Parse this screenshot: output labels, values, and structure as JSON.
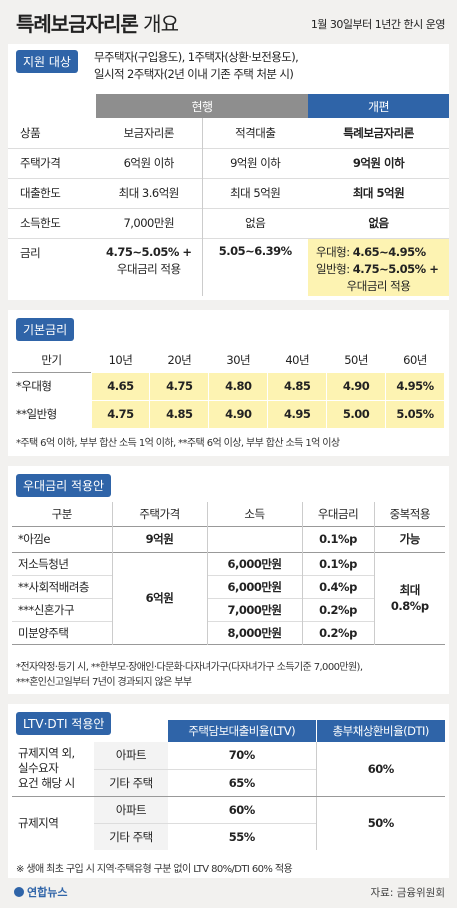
{
  "header": {
    "title": "특례보금자리론",
    "title_sub": " 개요",
    "date": "1월 30일부터 1년간 한시 운영"
  },
  "target": {
    "tag": "지원 대상",
    "line1": "무주택자(구입용도), 1주택자(상환·보전용도),",
    "line2": "일시적 2주택자(2년 이내 기존 주택 처분 시)"
  },
  "compare": {
    "group_current": "현행",
    "group_new": "개편",
    "rows": [
      {
        "label": "상품",
        "a": "보금자리론",
        "b": "적격대출",
        "c": "특례보금자리론"
      },
      {
        "label": "주택가격",
        "a": "6억원 이하",
        "b": "9억원 이하",
        "c": "9억원 이하"
      },
      {
        "label": "대출한도",
        "a": "최대 3.6억원",
        "b": "최대 5억원",
        "c": "최대 5억원"
      },
      {
        "label": "소득한도",
        "a": "7,000만원",
        "b": "없음",
        "c": "없음"
      }
    ],
    "rate": {
      "label": "금리",
      "a1": "4.75~5.05% +",
      "a2": "우대금리 적용",
      "b": "5.05~6.39%",
      "c1_prefix": "우대형: ",
      "c1_value": "4.65~4.95%",
      "c2_prefix": "일반형: ",
      "c2_value": "4.75~5.05% +",
      "c3": "우대금리 적용"
    }
  },
  "base": {
    "tag": "기본금리",
    "head": [
      "만기",
      "10년",
      "20년",
      "30년",
      "40년",
      "50년",
      "60년"
    ],
    "rows": [
      {
        "label": "*우대형",
        "values": [
          "4.65",
          "4.75",
          "4.80",
          "4.85",
          "4.90",
          "4.95%"
        ]
      },
      {
        "label": "**일반형",
        "values": [
          "4.75",
          "4.85",
          "4.90",
          "4.95",
          "5.00",
          "5.05%"
        ]
      }
    ],
    "note": "*주택 6억 이하, 부부 합산 소득 1억 이하, **주택 6억 이상, 부부 합산 소득 1억 이상"
  },
  "pref": {
    "tag": "우대금리 적용안",
    "head": [
      "구분",
      "주택가격",
      "소득",
      "우대금리",
      "중복적용"
    ],
    "rows": [
      {
        "label": "*아낌e",
        "price": "9억원",
        "income": "",
        "rate": "0.1%p",
        "dup": "가능"
      },
      {
        "label": "저소득청년",
        "income": "6,000만원",
        "rate": "0.1%p"
      },
      {
        "label": "**사회적배려층",
        "income": "6,000만원",
        "rate": "0.4%p"
      },
      {
        "label": "***신혼가구",
        "income": "7,000만원",
        "rate": "0.2%p"
      },
      {
        "label": "미분양주택",
        "income": "8,000만원",
        "rate": "0.2%p"
      }
    ],
    "merged_price": "6억원",
    "merged_dup1": "최대",
    "merged_dup2": "0.8%p",
    "note1": "*전자약정·등기 시, **한부모·장애인·다문화·다자녀가구(다자녀가구 소득기준 7,000만원),",
    "note2": "***혼인신고일부터 7년이 경과되지 않은 부부"
  },
  "ltv": {
    "tag": "LTV·DTI 적용안",
    "head_ltv": "주택담보대출비율(LTV)",
    "head_dti": "총부채상환비율(DTI)",
    "group1": {
      "l1": "규제지역 외,",
      "l2": "실수요자",
      "l3": "요건 해당 시",
      "rows": [
        {
          "type": "아파트",
          "ltv": "70%"
        },
        {
          "type": "기타 주택",
          "ltv": "65%"
        }
      ],
      "dti": "60%"
    },
    "group2": {
      "label": "규제지역",
      "rows": [
        {
          "type": "아파트",
          "ltv": "60%"
        },
        {
          "type": "기타 주택",
          "ltv": "55%"
        }
      ],
      "dti": "50%"
    },
    "note": "※ 생애 최초 구입 시 지역·주택유형 구분 없이 LTV 80%/DTI 60% 적용"
  },
  "footer": {
    "logo": "연합뉴스",
    "source": "자료: 금융위원회"
  },
  "colors": {
    "accent": "#2f64a8",
    "highlight": "#fdf3b2",
    "current_head": "#8e8e8e"
  }
}
